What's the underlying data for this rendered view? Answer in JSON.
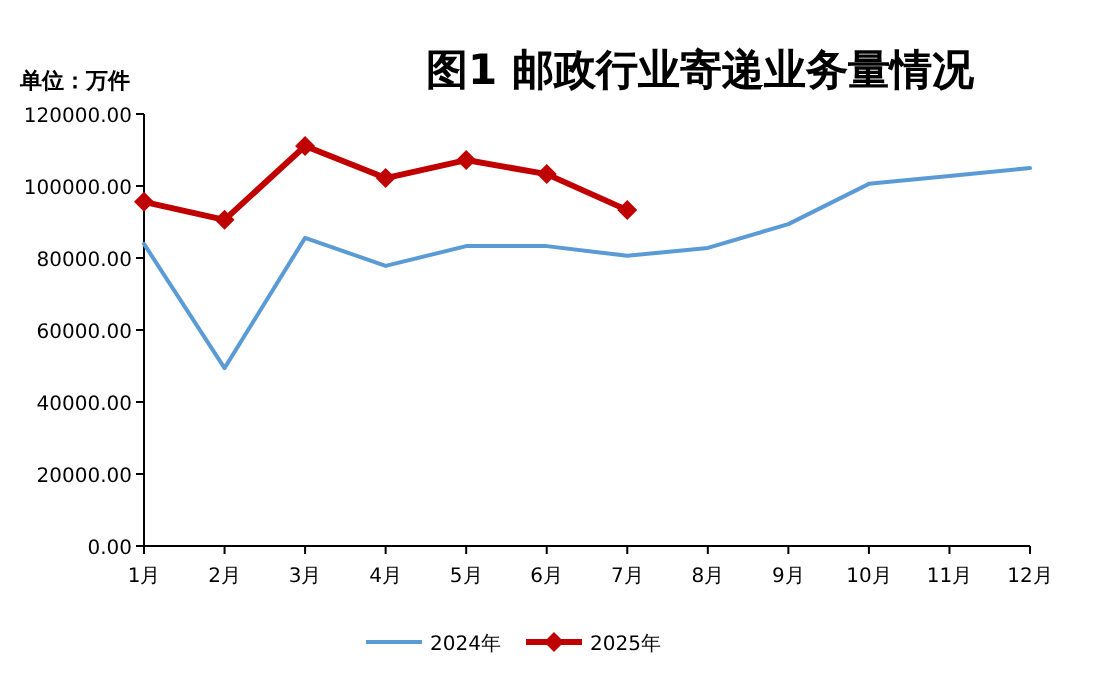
{
  "chart_data": {
    "type": "line",
    "title": "图1  邮政行业寄递业务量情况",
    "ylabel": "单位：万件",
    "categories": [
      "1月",
      "2月",
      "3月",
      "4月",
      "5月",
      "6月",
      "7月",
      "8月",
      "9月",
      "10月",
      "11月",
      "12月"
    ],
    "series": [
      {
        "name": "2024年",
        "color": "#5b9bd5",
        "marker": "none",
        "values": [
          83900,
          49400,
          85600,
          77800,
          83300,
          83300,
          80600,
          82800,
          89400,
          100600,
          102800,
          105000
        ]
      },
      {
        "name": "2025年",
        "color": "#c00000",
        "marker": "diamond",
        "values": [
          95600,
          90600,
          111100,
          102200,
          107200,
          103300,
          93300,
          null,
          null,
          null,
          null,
          null
        ]
      }
    ],
    "ylim": [
      0,
      120000
    ],
    "yticks": [
      {
        "value": 0,
        "label": "0.00"
      },
      {
        "value": 20000,
        "label": "20000.00"
      },
      {
        "value": 40000,
        "label": "40000.00"
      },
      {
        "value": 60000,
        "label": "60000.00"
      },
      {
        "value": 80000,
        "label": "80000.00"
      },
      {
        "value": 100000,
        "label": "100000.00"
      },
      {
        "value": 120000,
        "label": "120000.00"
      }
    ],
    "grid": false,
    "legend": "bottom"
  }
}
